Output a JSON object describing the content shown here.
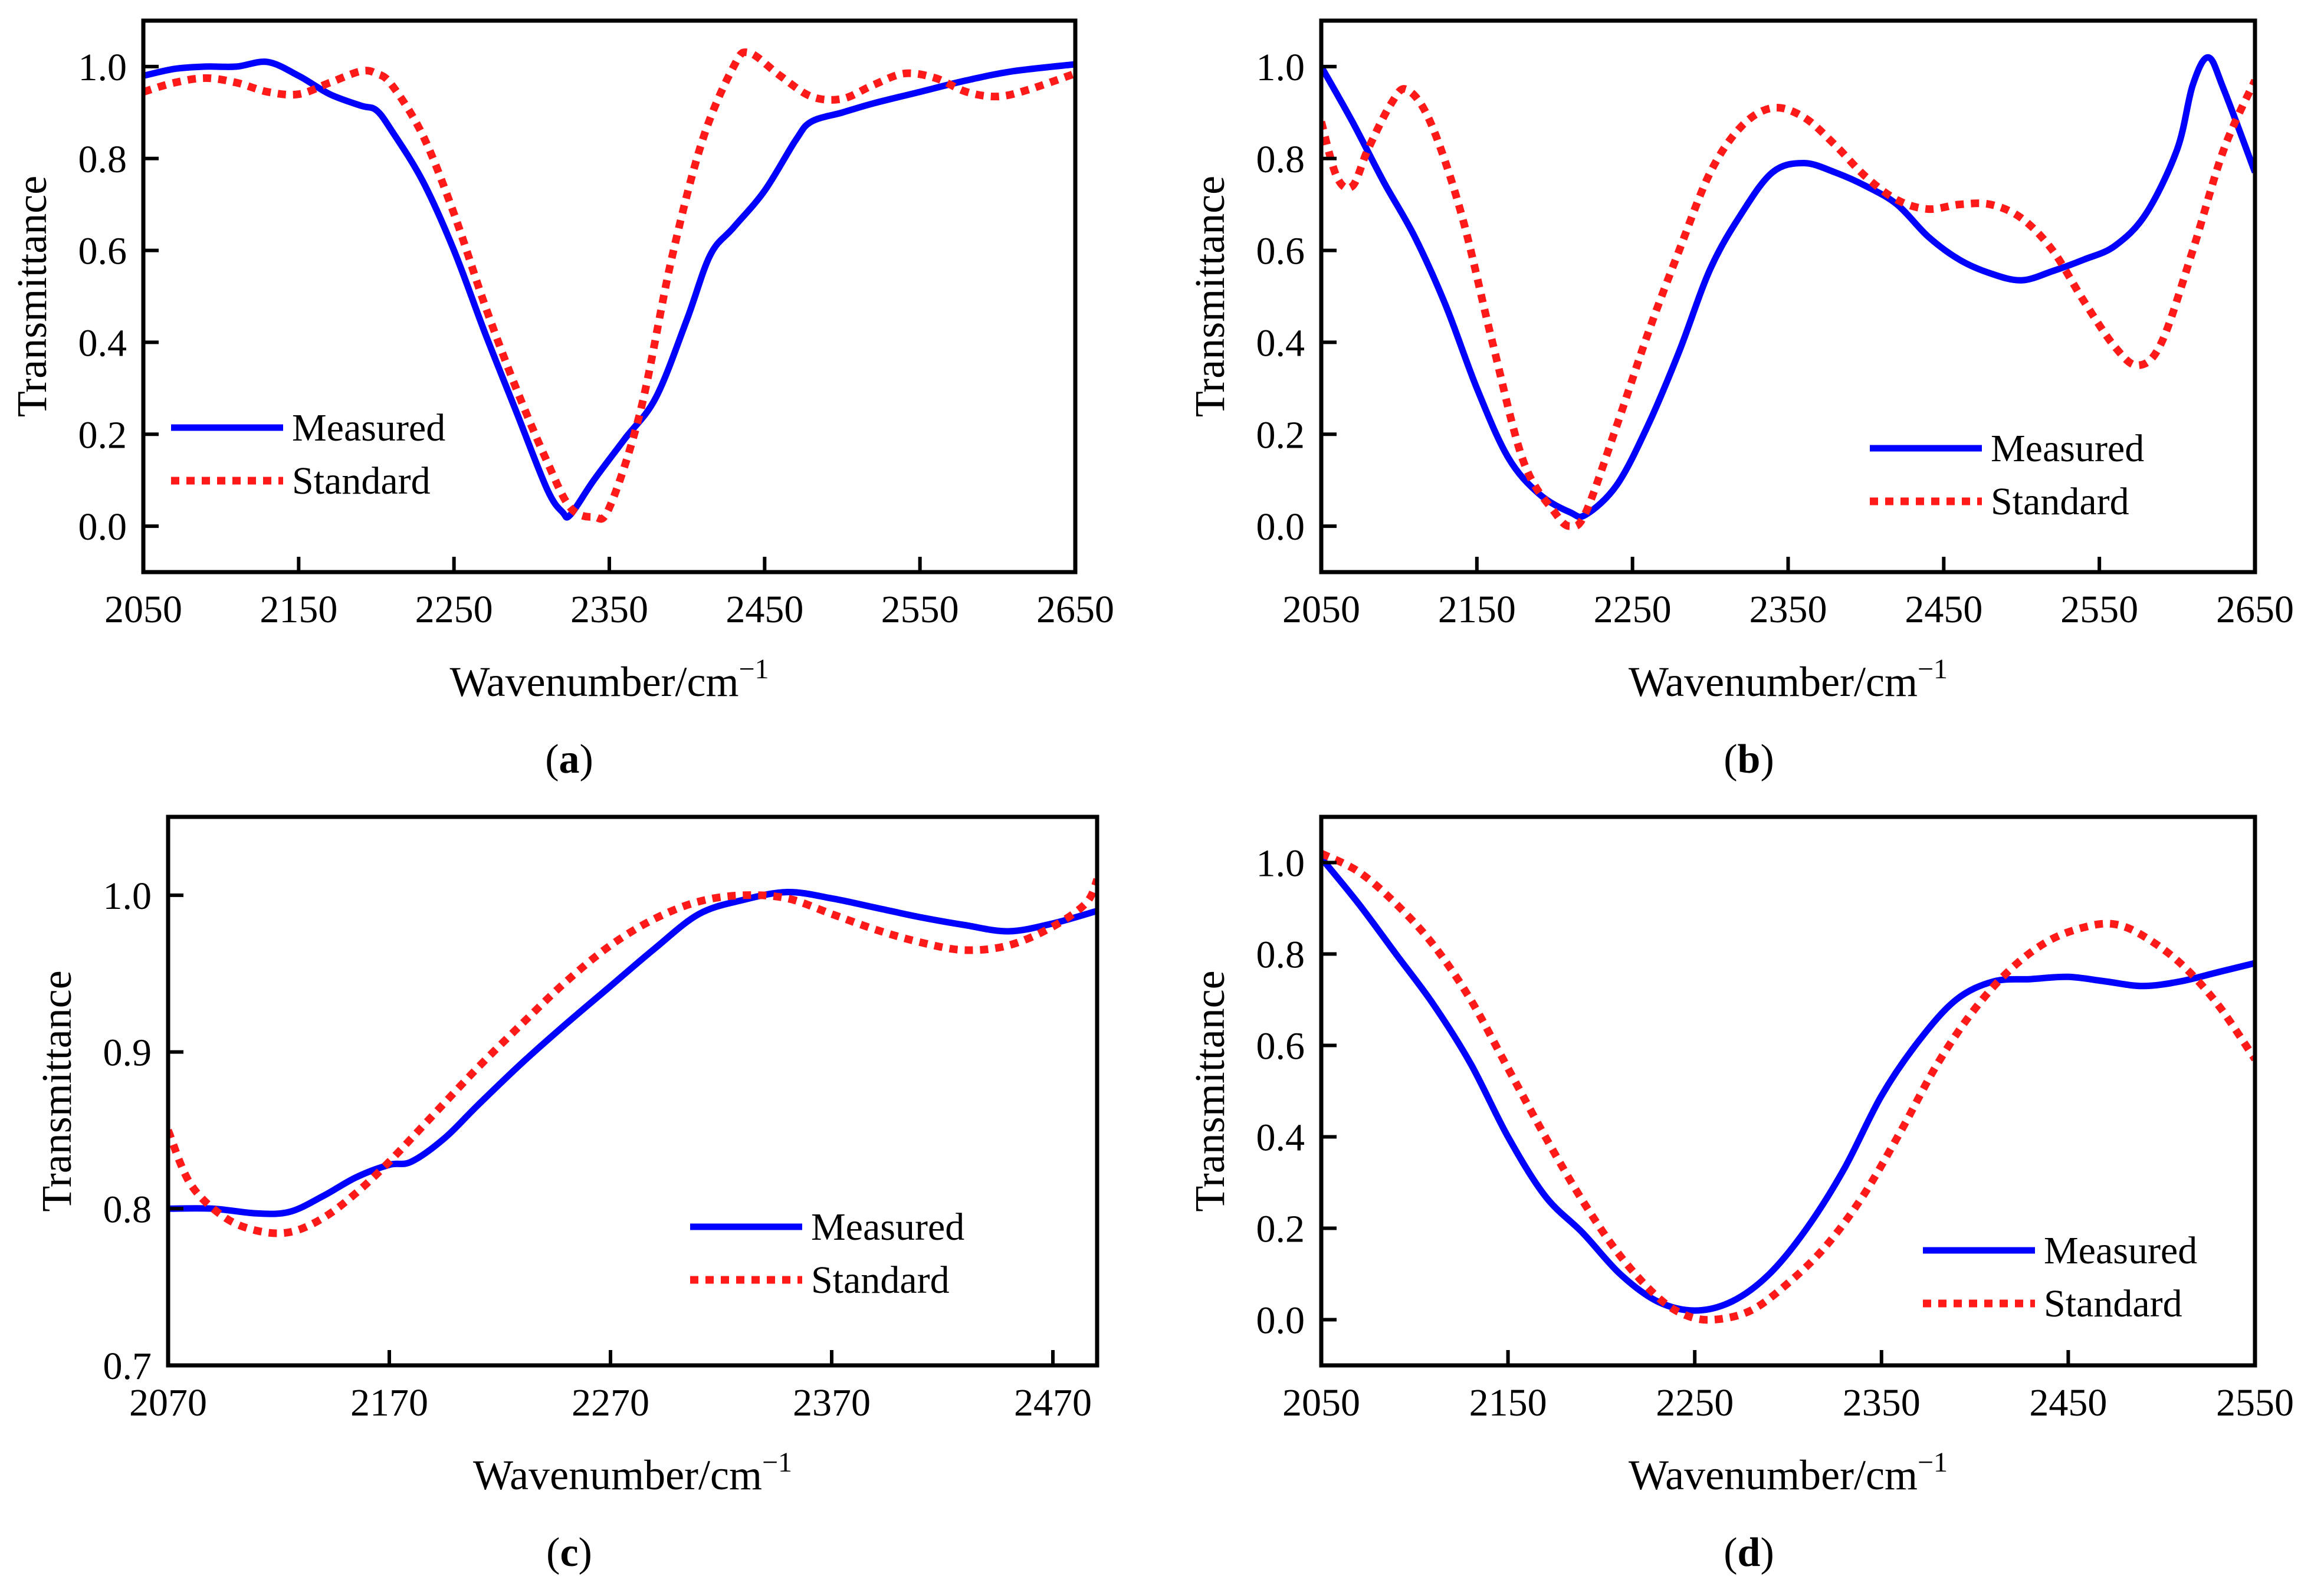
{
  "chart_data": [
    {
      "id": "a",
      "type": "line",
      "caption": {
        "open": "(",
        "letter": "a",
        "close": ")"
      },
      "xlabel": {
        "text": "Wavenumber/cm",
        "sup": "−1"
      },
      "ylabel": "Transmittance",
      "xlim": [
        2050,
        2650
      ],
      "ylim": [
        -0.1,
        1.1
      ],
      "xticks": [
        2050,
        2150,
        2250,
        2350,
        2450,
        2550,
        2650
      ],
      "yticks": [
        0.0,
        0.2,
        0.4,
        0.6,
        0.8,
        1.0
      ],
      "ytick_labels": [
        "0.0",
        "0.2",
        "0.4",
        "0.6",
        "0.8",
        "1.0"
      ],
      "legend_position": "bottom-left",
      "series": [
        {
          "name": "Measured",
          "color": "#0000ff",
          "style": "solid",
          "x": [
            2050,
            2070,
            2090,
            2110,
            2130,
            2150,
            2170,
            2190,
            2200,
            2210,
            2230,
            2250,
            2270,
            2290,
            2310,
            2320,
            2325,
            2340,
            2360,
            2380,
            2400,
            2415,
            2430,
            2450,
            2470,
            2480,
            2500,
            2520,
            2550,
            2580,
            2610,
            2650
          ],
          "y": [
            0.98,
            0.995,
            1.0,
            1.0,
            1.01,
            0.98,
            0.94,
            0.915,
            0.905,
            0.86,
            0.75,
            0.6,
            0.42,
            0.25,
            0.08,
            0.03,
            0.025,
            0.1,
            0.19,
            0.28,
            0.45,
            0.59,
            0.65,
            0.73,
            0.84,
            0.88,
            0.9,
            0.92,
            0.945,
            0.97,
            0.99,
            1.005
          ]
        },
        {
          "name": "Standard",
          "color": "#ff1a1a",
          "style": "dotted",
          "x": [
            2050,
            2070,
            2090,
            2110,
            2130,
            2150,
            2170,
            2190,
            2200,
            2210,
            2230,
            2250,
            2270,
            2290,
            2310,
            2325,
            2340,
            2350,
            2370,
            2390,
            2410,
            2430,
            2440,
            2460,
            2480,
            2500,
            2520,
            2540,
            2560,
            2580,
            2600,
            2620,
            2650
          ],
          "y": [
            0.945,
            0.965,
            0.975,
            0.965,
            0.945,
            0.94,
            0.965,
            0.99,
            0.985,
            0.96,
            0.85,
            0.68,
            0.48,
            0.3,
            0.14,
            0.04,
            0.02,
            0.04,
            0.25,
            0.58,
            0.84,
            1.0,
            1.03,
            0.98,
            0.935,
            0.93,
            0.96,
            0.985,
            0.975,
            0.945,
            0.935,
            0.95,
            0.985
          ]
        }
      ]
    },
    {
      "id": "b",
      "type": "line",
      "caption": {
        "open": "(",
        "letter": "b",
        "close": ")"
      },
      "xlabel": {
        "text": "Wavenumber/cm",
        "sup": "−1"
      },
      "ylabel": "Transmittance",
      "xlim": [
        2050,
        2650
      ],
      "ylim": [
        -0.1,
        1.1
      ],
      "xticks": [
        2050,
        2150,
        2250,
        2350,
        2450,
        2550,
        2650
      ],
      "yticks": [
        0.0,
        0.2,
        0.4,
        0.6,
        0.8,
        1.0
      ],
      "ytick_labels": [
        "0.0",
        "0.2",
        "0.4",
        "0.6",
        "0.8",
        "1.0"
      ],
      "legend_position": "bottom-right",
      "series": [
        {
          "name": "Measured",
          "color": "#0000ff",
          "style": "solid",
          "x": [
            2050,
            2070,
            2090,
            2110,
            2130,
            2150,
            2170,
            2190,
            2210,
            2220,
            2240,
            2260,
            2280,
            2300,
            2320,
            2340,
            2360,
            2380,
            2400,
            2420,
            2440,
            2460,
            2480,
            2500,
            2520,
            2540,
            2560,
            2580,
            2600,
            2610,
            2620,
            2630,
            2650
          ],
          "y": [
            1.0,
            0.88,
            0.75,
            0.63,
            0.48,
            0.3,
            0.15,
            0.07,
            0.03,
            0.025,
            0.09,
            0.22,
            0.38,
            0.56,
            0.68,
            0.77,
            0.79,
            0.77,
            0.74,
            0.7,
            0.63,
            0.58,
            0.55,
            0.535,
            0.555,
            0.58,
            0.61,
            0.68,
            0.82,
            0.96,
            1.02,
            0.95,
            0.77
          ]
        },
        {
          "name": "Standard",
          "color": "#ff1a1a",
          "style": "dotted",
          "x": [
            2050,
            2060,
            2070,
            2080,
            2095,
            2105,
            2120,
            2140,
            2160,
            2180,
            2200,
            2210,
            2220,
            2240,
            2260,
            2280,
            2300,
            2320,
            2340,
            2360,
            2380,
            2400,
            2420,
            2440,
            2460,
            2480,
            2500,
            2520,
            2540,
            2560,
            2575,
            2590,
            2610,
            2630,
            2650
          ],
          "y": [
            0.88,
            0.76,
            0.74,
            0.82,
            0.92,
            0.95,
            0.88,
            0.68,
            0.4,
            0.14,
            0.03,
            0.0,
            0.03,
            0.22,
            0.42,
            0.6,
            0.77,
            0.87,
            0.91,
            0.89,
            0.83,
            0.76,
            0.71,
            0.69,
            0.7,
            0.7,
            0.67,
            0.6,
            0.49,
            0.39,
            0.35,
            0.4,
            0.6,
            0.82,
            0.97
          ]
        }
      ]
    },
    {
      "id": "c",
      "type": "line",
      "caption": {
        "open": "(",
        "letter": "c",
        "close": ")"
      },
      "xlabel": {
        "text": "Wavenumber/cm",
        "sup": "−1"
      },
      "ylabel": "Transmittance",
      "xlim": [
        2070,
        2490
      ],
      "ylim": [
        0.7,
        1.05
      ],
      "xticks": [
        2070,
        2170,
        2270,
        2370,
        2470
      ],
      "yticks": [
        0.7,
        0.8,
        0.9,
        1.0
      ],
      "ytick_labels": [
        "0.7",
        "0.8",
        "0.9",
        "1.0"
      ],
      "legend_position": "bottom-right",
      "series": [
        {
          "name": "Measured",
          "color": "#0000ff",
          "style": "solid",
          "x": [
            2070,
            2090,
            2110,
            2125,
            2140,
            2155,
            2170,
            2180,
            2195,
            2210,
            2230,
            2250,
            2270,
            2290,
            2310,
            2330,
            2350,
            2370,
            2390,
            2410,
            2430,
            2450,
            2470,
            2490
          ],
          "y": [
            0.8,
            0.8,
            0.797,
            0.798,
            0.808,
            0.82,
            0.828,
            0.83,
            0.845,
            0.866,
            0.893,
            0.918,
            0.942,
            0.966,
            0.988,
            0.997,
            1.002,
            0.998,
            0.992,
            0.986,
            0.981,
            0.977,
            0.982,
            0.99
          ]
        },
        {
          "name": "Standard",
          "color": "#ff1a1a",
          "style": "dotted",
          "x": [
            2070,
            2080,
            2095,
            2110,
            2125,
            2140,
            2155,
            2170,
            2190,
            2210,
            2230,
            2250,
            2270,
            2290,
            2310,
            2330,
            2350,
            2370,
            2390,
            2410,
            2430,
            2450,
            2470,
            2485,
            2490
          ],
          "y": [
            0.85,
            0.816,
            0.795,
            0.786,
            0.785,
            0.794,
            0.81,
            0.83,
            0.86,
            0.89,
            0.918,
            0.945,
            0.968,
            0.985,
            0.996,
            1.0,
            0.998,
            0.988,
            0.978,
            0.97,
            0.965,
            0.968,
            0.98,
            0.995,
            1.01
          ]
        }
      ]
    },
    {
      "id": "d",
      "type": "line",
      "caption": {
        "open": "(",
        "letter": "d",
        "close": ")"
      },
      "xlabel": {
        "text": "Wavenumber/cm",
        "sup": "−1"
      },
      "ylabel": "Transmittance",
      "xlim": [
        2050,
        2550
      ],
      "ylim": [
        -0.1,
        1.1
      ],
      "xticks": [
        2050,
        2150,
        2250,
        2350,
        2450,
        2550
      ],
      "yticks": [
        0.0,
        0.2,
        0.4,
        0.6,
        0.8,
        1.0
      ],
      "ytick_labels": [
        "0.0",
        "0.2",
        "0.4",
        "0.6",
        "0.8",
        "1.0"
      ],
      "legend_position": "bottom-right",
      "series": [
        {
          "name": "Measured",
          "color": "#0000ff",
          "style": "solid",
          "x": [
            2050,
            2070,
            2090,
            2110,
            2130,
            2150,
            2170,
            2190,
            2210,
            2230,
            2250,
            2270,
            2290,
            2310,
            2330,
            2350,
            2370,
            2390,
            2410,
            2430,
            2450,
            2470,
            2490,
            2510,
            2530,
            2550
          ],
          "y": [
            1.01,
            0.91,
            0.8,
            0.69,
            0.56,
            0.4,
            0.27,
            0.19,
            0.1,
            0.04,
            0.02,
            0.04,
            0.1,
            0.2,
            0.33,
            0.49,
            0.61,
            0.7,
            0.74,
            0.745,
            0.75,
            0.74,
            0.73,
            0.74,
            0.76,
            0.78
          ]
        },
        {
          "name": "Standard",
          "color": "#ff1a1a",
          "style": "dotted",
          "x": [
            2050,
            2070,
            2090,
            2110,
            2130,
            2150,
            2170,
            2190,
            2210,
            2230,
            2245,
            2260,
            2280,
            2300,
            2320,
            2340,
            2360,
            2380,
            2400,
            2420,
            2440,
            2460,
            2475,
            2490,
            2510,
            2530,
            2550
          ],
          "y": [
            1.02,
            0.98,
            0.91,
            0.82,
            0.7,
            0.55,
            0.4,
            0.26,
            0.14,
            0.05,
            0.01,
            0.0,
            0.02,
            0.08,
            0.16,
            0.27,
            0.41,
            0.56,
            0.68,
            0.77,
            0.83,
            0.86,
            0.865,
            0.84,
            0.78,
            0.69,
            0.57
          ]
        }
      ]
    }
  ]
}
